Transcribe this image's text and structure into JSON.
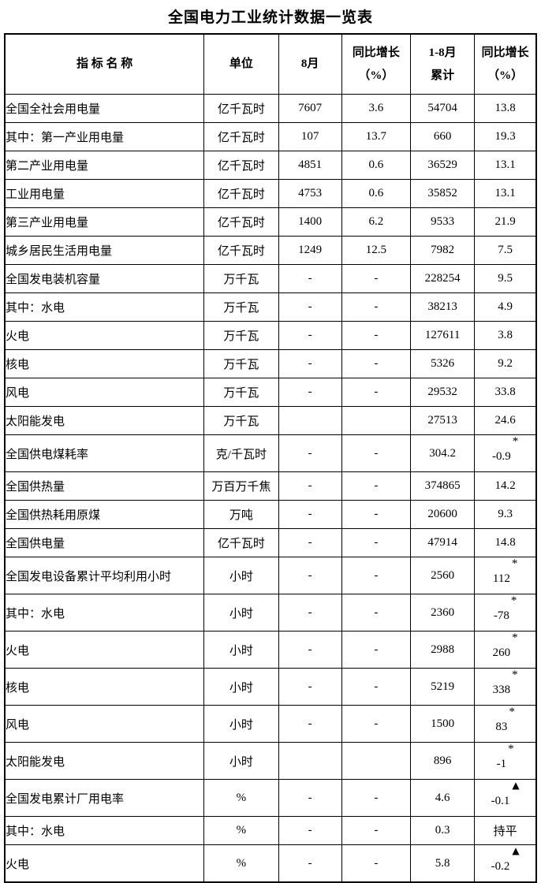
{
  "title": "全国电力工业统计数据一览表",
  "header": {
    "col_indicator": "指 标 名 称",
    "col_unit": "单位",
    "col_month": "8月",
    "col_month_yoy_line1": "同比增长",
    "col_month_yoy_line2": "（%）",
    "col_cum_line1": "1-8月",
    "col_cum_line2": "累计",
    "col_cum_yoy_line1": "同比增长",
    "col_cum_yoy_line2": "（%）"
  },
  "rows": [
    {
      "name": "全国全社会用电量",
      "indent": 0,
      "unit": "亿千瓦时",
      "m": "7607",
      "m_yoy": "3.6",
      "cum": "54704",
      "c_yoy": "13.8",
      "c_sup": ""
    },
    {
      "name": "其中：第一产业用电量",
      "indent": 1,
      "unit": "亿千瓦时",
      "m": "107",
      "m_yoy": "13.7",
      "cum": "660",
      "c_yoy": "19.3",
      "c_sup": ""
    },
    {
      "name": "第二产业用电量",
      "indent": 2,
      "unit": "亿千瓦时",
      "m": "4851",
      "m_yoy": "0.6",
      "cum": "36529",
      "c_yoy": "13.1",
      "c_sup": ""
    },
    {
      "name": "工业用电量",
      "indent": 3,
      "unit": "亿千瓦时",
      "m": "4753",
      "m_yoy": "0.6",
      "cum": "35852",
      "c_yoy": "13.1",
      "c_sup": ""
    },
    {
      "name": "第三产业用电量",
      "indent": 2,
      "unit": "亿千瓦时",
      "m": "1400",
      "m_yoy": "6.2",
      "cum": "9533",
      "c_yoy": "21.9",
      "c_sup": ""
    },
    {
      "name": "城乡居民生活用电量",
      "indent": 2,
      "unit": "亿千瓦时",
      "m": "1249",
      "m_yoy": "12.5",
      "cum": "7982",
      "c_yoy": "7.5",
      "c_sup": ""
    },
    {
      "name": "全国发电装机容量",
      "indent": 0,
      "unit": "万千瓦",
      "m": "-",
      "m_yoy": "-",
      "cum": "228254",
      "c_yoy": "9.5",
      "c_sup": ""
    },
    {
      "name": "其中：水电",
      "indent": 1,
      "unit": "万千瓦",
      "m": "-",
      "m_yoy": "-",
      "cum": "38213",
      "c_yoy": "4.9",
      "c_sup": ""
    },
    {
      "name": "火电",
      "indent": 2,
      "unit": "万千瓦",
      "m": "-",
      "m_yoy": "-",
      "cum": "127611",
      "c_yoy": "3.8",
      "c_sup": ""
    },
    {
      "name": "核电",
      "indent": 2,
      "unit": "万千瓦",
      "m": "-",
      "m_yoy": "-",
      "cum": "5326",
      "c_yoy": "9.2",
      "c_sup": ""
    },
    {
      "name": "风电",
      "indent": 2,
      "unit": "万千瓦",
      "m": "-",
      "m_yoy": "-",
      "cum": "29532",
      "c_yoy": "33.8",
      "c_sup": ""
    },
    {
      "name": "太阳能发电",
      "indent": 2,
      "unit": "万千瓦",
      "m": "",
      "m_yoy": "",
      "cum": "27513",
      "c_yoy": "24.6",
      "c_sup": ""
    },
    {
      "name": "全国供电煤耗率",
      "indent": 0,
      "unit": "克/千瓦时",
      "m": "-",
      "m_yoy": "-",
      "cum": "304.2",
      "c_yoy": "-0.9",
      "c_sup": "*"
    },
    {
      "name": "全国供热量",
      "indent": 0,
      "unit": "万百万千焦",
      "m": "-",
      "m_yoy": "-",
      "cum": "374865",
      "c_yoy": "14.2",
      "c_sup": ""
    },
    {
      "name": "全国供热耗用原煤",
      "indent": 0,
      "unit": "万吨",
      "m": "-",
      "m_yoy": "-",
      "cum": "20600",
      "c_yoy": "9.3",
      "c_sup": ""
    },
    {
      "name": "全国供电量",
      "indent": 0,
      "unit": "亿千瓦时",
      "m": "-",
      "m_yoy": "-",
      "cum": "47914",
      "c_yoy": "14.8",
      "c_sup": ""
    },
    {
      "name": "全国发电设备累计平均利用小时",
      "indent": 0,
      "unit": "小时",
      "m": "-",
      "m_yoy": "-",
      "cum": "2560",
      "c_yoy": "112",
      "c_sup": "*"
    },
    {
      "name": "其中：水电",
      "indent": 1,
      "unit": "小时",
      "m": "-",
      "m_yoy": "-",
      "cum": "2360",
      "c_yoy": "-78",
      "c_sup": "*"
    },
    {
      "name": "火电",
      "indent": 2,
      "unit": "小时",
      "m": "-",
      "m_yoy": "-",
      "cum": "2988",
      "c_yoy": "260",
      "c_sup": "*"
    },
    {
      "name": "核电",
      "indent": 2,
      "unit": "小时",
      "m": "-",
      "m_yoy": "-",
      "cum": "5219",
      "c_yoy": "338",
      "c_sup": "*"
    },
    {
      "name": "风电",
      "indent": 2,
      "unit": "小时",
      "m": "-",
      "m_yoy": "-",
      "cum": "1500",
      "c_yoy": "83",
      "c_sup": "*"
    },
    {
      "name": "太阳能发电",
      "indent": 2,
      "unit": "小时",
      "m": "",
      "m_yoy": "",
      "cum": "896",
      "c_yoy": "-1",
      "c_sup": "*"
    },
    {
      "name": "全国发电累计厂用电率",
      "indent": 0,
      "unit": "%",
      "m": "-",
      "m_yoy": "-",
      "cum": "4.6",
      "c_yoy": "-0.1",
      "c_sup": "▲"
    },
    {
      "name": "其中：水电",
      "indent": 1,
      "unit": "%",
      "m": "-",
      "m_yoy": "-",
      "cum": "0.3",
      "c_yoy": "持平",
      "c_sup": ""
    },
    {
      "name": "火电",
      "indent": 2,
      "unit": "%",
      "m": "-",
      "m_yoy": "-",
      "cum": "5.8",
      "c_yoy": "-0.2",
      "c_sup": "▲"
    }
  ],
  "colors": {
    "text": "#000000",
    "border": "#000000",
    "background": "#ffffff"
  }
}
